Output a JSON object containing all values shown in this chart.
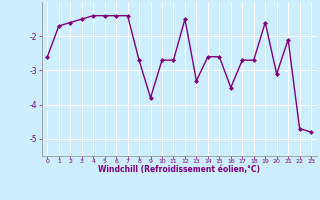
{
  "x": [
    0,
    1,
    2,
    3,
    4,
    5,
    6,
    7,
    8,
    9,
    10,
    11,
    12,
    13,
    14,
    15,
    16,
    17,
    18,
    19,
    20,
    21,
    22,
    23
  ],
  "y": [
    -2.6,
    -1.7,
    -1.6,
    -1.5,
    -1.4,
    -1.4,
    -1.4,
    -1.4,
    -2.7,
    -3.8,
    -2.7,
    -2.7,
    -1.5,
    -3.3,
    -2.6,
    -2.6,
    -3.5,
    -2.7,
    -2.7,
    -1.6,
    -3.1,
    -2.1,
    -4.7,
    -4.8
  ],
  "line_color": "#800080",
  "marker": "D",
  "marker_size": 2,
  "bg_color": "#cceeff",
  "grid_color": "#ffffff",
  "xlabel": "Windchill (Refroidissement éolien,°C)",
  "ylim": [
    -5.5,
    -1.0
  ],
  "xlim": [
    -0.5,
    23.5
  ],
  "yticks": [
    -5,
    -4,
    -3,
    -2
  ],
  "xticks": [
    0,
    1,
    2,
    3,
    4,
    5,
    6,
    7,
    8,
    9,
    10,
    11,
    12,
    13,
    14,
    15,
    16,
    17,
    18,
    19,
    20,
    21,
    22,
    23
  ],
  "tick_color": "#800080",
  "label_color": "#800080",
  "line_width": 1.0
}
